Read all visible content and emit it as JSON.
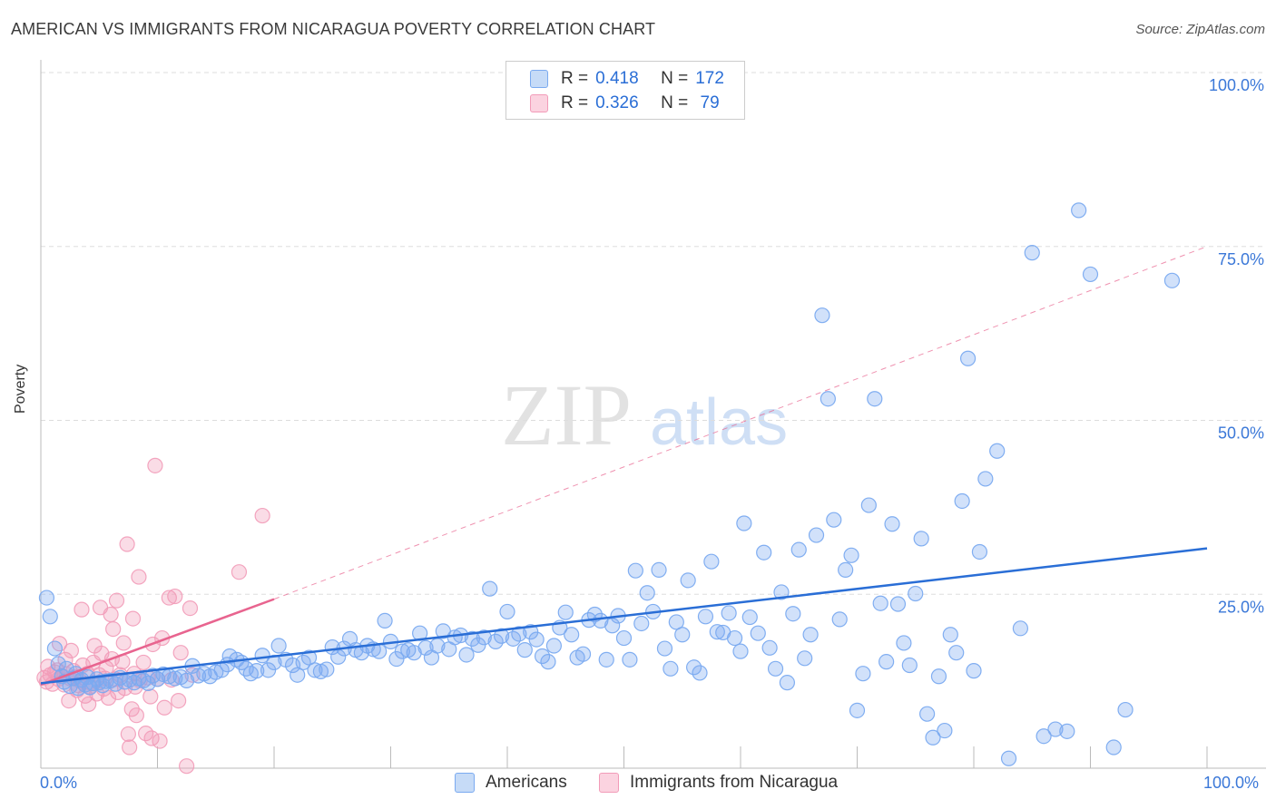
{
  "title": "AMERICAN VS IMMIGRANTS FROM NICARAGUA POVERTY CORRELATION CHART",
  "source": "Source: ZipAtlas.com",
  "watermark": {
    "zip": "ZIP",
    "atlas": "atlas"
  },
  "colors": {
    "americans": "#7aaaf0",
    "americans_line": "#2a6ed6",
    "nicaragua": "#f29bb8",
    "nicaragua_line": "#e8648f",
    "axis_text": "#3b78d8",
    "grid": "#dddddd"
  },
  "legend": {
    "rows": [
      {
        "r_label": "R =",
        "r_value": "0.418",
        "n_label": "N =",
        "n_value": "172"
      },
      {
        "r_label": "R =",
        "r_value": "0.326",
        "n_label": "N =",
        "n_value": " 79"
      }
    ]
  },
  "bottom_legend": {
    "americans": "Americans",
    "nicaragua": "Immigrants from Nicaragua"
  },
  "axes": {
    "ylabel": "Poverty",
    "x_left": "0.0%",
    "x_right": "100.0%",
    "y_ticks": [
      "100.0%",
      "75.0%",
      "50.0%",
      "25.0%"
    ]
  },
  "chart_data": {
    "type": "scatter",
    "title": "AMERICAN VS IMMIGRANTS FROM NICARAGUA POVERTY CORRELATION CHART",
    "xlabel": "",
    "ylabel": "Poverty",
    "xlim": [
      0,
      100
    ],
    "ylim": [
      0,
      100
    ],
    "x_ticks": [
      0,
      10,
      20,
      30,
      40,
      50,
      60,
      70,
      80,
      90,
      100
    ],
    "y_ticks": [
      25,
      50,
      75,
      100
    ],
    "grid": true,
    "series": [
      {
        "name": "Americans",
        "r": 0.418,
        "n": 172,
        "trend": {
          "x": [
            0,
            100
          ],
          "y": [
            12.2,
            31.6
          ],
          "style": "solid"
        },
        "points": [
          [
            0.5,
            24.5
          ],
          [
            0.8,
            21.8
          ],
          [
            1.2,
            17.2
          ],
          [
            1.5,
            15.0
          ],
          [
            1.8,
            13.2
          ],
          [
            2.0,
            12.4
          ],
          [
            2.2,
            14.3
          ],
          [
            2.5,
            11.8
          ],
          [
            2.8,
            12.9
          ],
          [
            3.0,
            13.6
          ],
          [
            3.2,
            11.5
          ],
          [
            3.5,
            12.7
          ],
          [
            3.8,
            12.0
          ],
          [
            4.0,
            13.1
          ],
          [
            4.2,
            11.6
          ],
          [
            4.5,
            12.2
          ],
          [
            4.8,
            12.8
          ],
          [
            5.0,
            12.3
          ],
          [
            5.3,
            11.9
          ],
          [
            5.6,
            12.5
          ],
          [
            6.0,
            12.6
          ],
          [
            6.4,
            12.1
          ],
          [
            6.8,
            13.0
          ],
          [
            7.2,
            12.4
          ],
          [
            7.6,
            12.7
          ],
          [
            8.0,
            12.3
          ],
          [
            8.4,
            12.9
          ],
          [
            8.8,
            12.6
          ],
          [
            9.2,
            12.2
          ],
          [
            9.6,
            13.3
          ],
          [
            10.0,
            12.8
          ],
          [
            10.5,
            13.5
          ],
          [
            11.0,
            13.2
          ],
          [
            11.5,
            12.9
          ],
          [
            12.0,
            13.1
          ],
          [
            12.5,
            12.6
          ],
          [
            13.0,
            14.7
          ],
          [
            13.5,
            13.3
          ],
          [
            14.0,
            13.6
          ],
          [
            14.5,
            13.2
          ],
          [
            15.0,
            13.8
          ],
          [
            15.5,
            14.1
          ],
          [
            16.0,
            14.9
          ],
          [
            16.2,
            16.1
          ],
          [
            16.8,
            15.6
          ],
          [
            17.2,
            15.2
          ],
          [
            17.6,
            14.3
          ],
          [
            18.0,
            13.6
          ],
          [
            18.5,
            14.0
          ],
          [
            19.0,
            16.2
          ],
          [
            19.5,
            14.1
          ],
          [
            20.0,
            15.2
          ],
          [
            20.4,
            17.6
          ],
          [
            21.0,
            15.6
          ],
          [
            21.6,
            14.8
          ],
          [
            22.0,
            13.4
          ],
          [
            22.5,
            15.2
          ],
          [
            23.0,
            15.9
          ],
          [
            23.5,
            14.1
          ],
          [
            24.0,
            13.9
          ],
          [
            24.5,
            14.2
          ],
          [
            25.0,
            17.4
          ],
          [
            25.5,
            16.0
          ],
          [
            26.0,
            17.2
          ],
          [
            26.5,
            18.6
          ],
          [
            27.0,
            17.0
          ],
          [
            27.5,
            16.6
          ],
          [
            28.0,
            17.6
          ],
          [
            28.5,
            17.1
          ],
          [
            29.0,
            16.8
          ],
          [
            29.5,
            21.2
          ],
          [
            30.0,
            18.2
          ],
          [
            30.5,
            15.7
          ],
          [
            31.0,
            16.8
          ],
          [
            31.5,
            17.0
          ],
          [
            32.0,
            16.6
          ],
          [
            32.5,
            19.4
          ],
          [
            33.0,
            17.3
          ],
          [
            33.5,
            15.9
          ],
          [
            34.0,
            17.6
          ],
          [
            34.5,
            19.7
          ],
          [
            35.0,
            17.1
          ],
          [
            35.5,
            18.8
          ],
          [
            36.0,
            19.1
          ],
          [
            36.5,
            16.3
          ],
          [
            37.0,
            18.6
          ],
          [
            37.5,
            17.7
          ],
          [
            38.0,
            18.8
          ],
          [
            38.5,
            25.8
          ],
          [
            39.0,
            18.2
          ],
          [
            39.5,
            19.0
          ],
          [
            40.0,
            22.5
          ],
          [
            40.5,
            18.6
          ],
          [
            41.0,
            19.3
          ],
          [
            41.5,
            17.0
          ],
          [
            42.0,
            19.6
          ],
          [
            42.5,
            18.5
          ],
          [
            43.0,
            16.1
          ],
          [
            43.5,
            15.3
          ],
          [
            44.0,
            17.6
          ],
          [
            44.5,
            20.2
          ],
          [
            45.0,
            22.4
          ],
          [
            45.5,
            19.2
          ],
          [
            46.0,
            15.9
          ],
          [
            46.5,
            16.4
          ],
          [
            47.0,
            21.3
          ],
          [
            47.5,
            22.1
          ],
          [
            48.0,
            21.2
          ],
          [
            48.5,
            15.6
          ],
          [
            49.0,
            20.5
          ],
          [
            49.5,
            21.9
          ],
          [
            50.0,
            18.7
          ],
          [
            50.5,
            15.6
          ],
          [
            51.0,
            28.4
          ],
          [
            51.5,
            20.8
          ],
          [
            52.0,
            25.2
          ],
          [
            52.5,
            22.5
          ],
          [
            53.0,
            28.5
          ],
          [
            53.5,
            17.2
          ],
          [
            54.0,
            14.3
          ],
          [
            54.5,
            21.0
          ],
          [
            55.0,
            19.2
          ],
          [
            55.5,
            27.0
          ],
          [
            56.0,
            14.5
          ],
          [
            56.5,
            13.7
          ],
          [
            57.0,
            21.8
          ],
          [
            57.5,
            29.7
          ],
          [
            58.0,
            19.6
          ],
          [
            58.5,
            19.5
          ],
          [
            59.0,
            22.3
          ],
          [
            59.5,
            18.7
          ],
          [
            60.0,
            16.8
          ],
          [
            60.3,
            35.2
          ],
          [
            60.8,
            21.7
          ],
          [
            61.5,
            19.4
          ],
          [
            62.0,
            31.0
          ],
          [
            62.5,
            17.3
          ],
          [
            63.0,
            14.3
          ],
          [
            63.5,
            25.3
          ],
          [
            64.0,
            12.3
          ],
          [
            64.5,
            22.2
          ],
          [
            65.0,
            31.4
          ],
          [
            65.5,
            15.8
          ],
          [
            66.0,
            19.2
          ],
          [
            66.5,
            33.5
          ],
          [
            67.0,
            65.1
          ],
          [
            67.5,
            53.1
          ],
          [
            68.0,
            35.7
          ],
          [
            68.5,
            21.4
          ],
          [
            69.0,
            28.5
          ],
          [
            69.5,
            30.6
          ],
          [
            70.0,
            8.3
          ],
          [
            70.5,
            13.6
          ],
          [
            71.0,
            37.8
          ],
          [
            71.5,
            53.1
          ],
          [
            72.0,
            23.7
          ],
          [
            72.5,
            15.3
          ],
          [
            73.0,
            35.1
          ],
          [
            73.5,
            23.6
          ],
          [
            74.0,
            18.0
          ],
          [
            74.5,
            14.8
          ],
          [
            75.0,
            25.1
          ],
          [
            75.5,
            33.0
          ],
          [
            76.0,
            7.8
          ],
          [
            76.5,
            4.4
          ],
          [
            77.0,
            13.2
          ],
          [
            77.5,
            5.4
          ],
          [
            78.0,
            19.2
          ],
          [
            78.5,
            16.6
          ],
          [
            79.0,
            38.4
          ],
          [
            79.5,
            58.9
          ],
          [
            80.0,
            14.0
          ],
          [
            80.5,
            31.1
          ],
          [
            81.0,
            41.6
          ],
          [
            82.0,
            45.6
          ],
          [
            83.0,
            1.4
          ],
          [
            84.0,
            20.1
          ],
          [
            85.0,
            74.1
          ],
          [
            86.0,
            4.6
          ],
          [
            87.0,
            5.6
          ],
          [
            88.0,
            5.3
          ],
          [
            89.0,
            80.2
          ],
          [
            90.0,
            71.0
          ],
          [
            92.0,
            3.0
          ],
          [
            93.0,
            8.4
          ],
          [
            97.0,
            70.1
          ]
        ]
      },
      {
        "name": "Immigrants from Nicaragua",
        "r": 0.326,
        "n": 79,
        "trend": {
          "x": [
            0,
            20
          ],
          "y": [
            12.0,
            24.3
          ],
          "style": "solid",
          "extrapolated": {
            "x": [
              20,
              100
            ],
            "y": [
              24.3,
              75.0
            ],
            "style": "dashed"
          }
        },
        "points": [
          [
            0.3,
            13.0
          ],
          [
            0.5,
            12.4
          ],
          [
            0.6,
            14.6
          ],
          [
            0.8,
            13.4
          ],
          [
            1.0,
            12.1
          ],
          [
            1.2,
            13.8
          ],
          [
            1.4,
            14.1
          ],
          [
            1.5,
            12.8
          ],
          [
            1.6,
            17.9
          ],
          [
            1.8,
            13.3
          ],
          [
            2.0,
            12.0
          ],
          [
            2.1,
            15.6
          ],
          [
            2.2,
            13.5
          ],
          [
            2.4,
            9.7
          ],
          [
            2.5,
            12.9
          ],
          [
            2.6,
            16.9
          ],
          [
            2.8,
            14.0
          ],
          [
            3.0,
            13.1
          ],
          [
            3.1,
            11.2
          ],
          [
            3.2,
            11.9
          ],
          [
            3.4,
            12.5
          ],
          [
            3.5,
            22.8
          ],
          [
            3.6,
            14.8
          ],
          [
            3.8,
            10.4
          ],
          [
            4.0,
            13.6
          ],
          [
            4.1,
            9.2
          ],
          [
            4.2,
            11.7
          ],
          [
            4.4,
            12.2
          ],
          [
            4.5,
            15.2
          ],
          [
            4.6,
            17.6
          ],
          [
            4.8,
            10.7
          ],
          [
            5.0,
            13.4
          ],
          [
            5.1,
            23.1
          ],
          [
            5.2,
            16.5
          ],
          [
            5.4,
            11.4
          ],
          [
            5.5,
            12.9
          ],
          [
            5.6,
            14.4
          ],
          [
            5.8,
            10.1
          ],
          [
            6.0,
            22.1
          ],
          [
            6.1,
            15.7
          ],
          [
            6.2,
            20.0
          ],
          [
            6.4,
            12.8
          ],
          [
            6.5,
            24.1
          ],
          [
            6.6,
            10.9
          ],
          [
            6.8,
            13.4
          ],
          [
            7.0,
            15.3
          ],
          [
            7.1,
            18.0
          ],
          [
            7.2,
            11.5
          ],
          [
            7.4,
            32.2
          ],
          [
            7.5,
            4.9
          ],
          [
            7.6,
            3.0
          ],
          [
            7.8,
            8.5
          ],
          [
            7.9,
            21.5
          ],
          [
            8.0,
            13.6
          ],
          [
            8.1,
            11.7
          ],
          [
            8.2,
            7.6
          ],
          [
            8.4,
            27.5
          ],
          [
            8.5,
            12.6
          ],
          [
            8.8,
            15.2
          ],
          [
            9.0,
            5.0
          ],
          [
            9.2,
            13.0
          ],
          [
            9.4,
            10.3
          ],
          [
            9.5,
            4.3
          ],
          [
            9.6,
            17.8
          ],
          [
            9.8,
            43.5
          ],
          [
            10.0,
            12.8
          ],
          [
            10.2,
            3.9
          ],
          [
            10.4,
            18.7
          ],
          [
            10.6,
            8.7
          ],
          [
            11.0,
            24.5
          ],
          [
            11.2,
            12.7
          ],
          [
            11.5,
            24.7
          ],
          [
            11.8,
            9.7
          ],
          [
            12.0,
            16.6
          ],
          [
            12.5,
            0.3
          ],
          [
            12.8,
            23.0
          ],
          [
            13.0,
            13.4
          ],
          [
            17.0,
            28.2
          ],
          [
            19.0,
            36.3
          ]
        ]
      }
    ]
  }
}
